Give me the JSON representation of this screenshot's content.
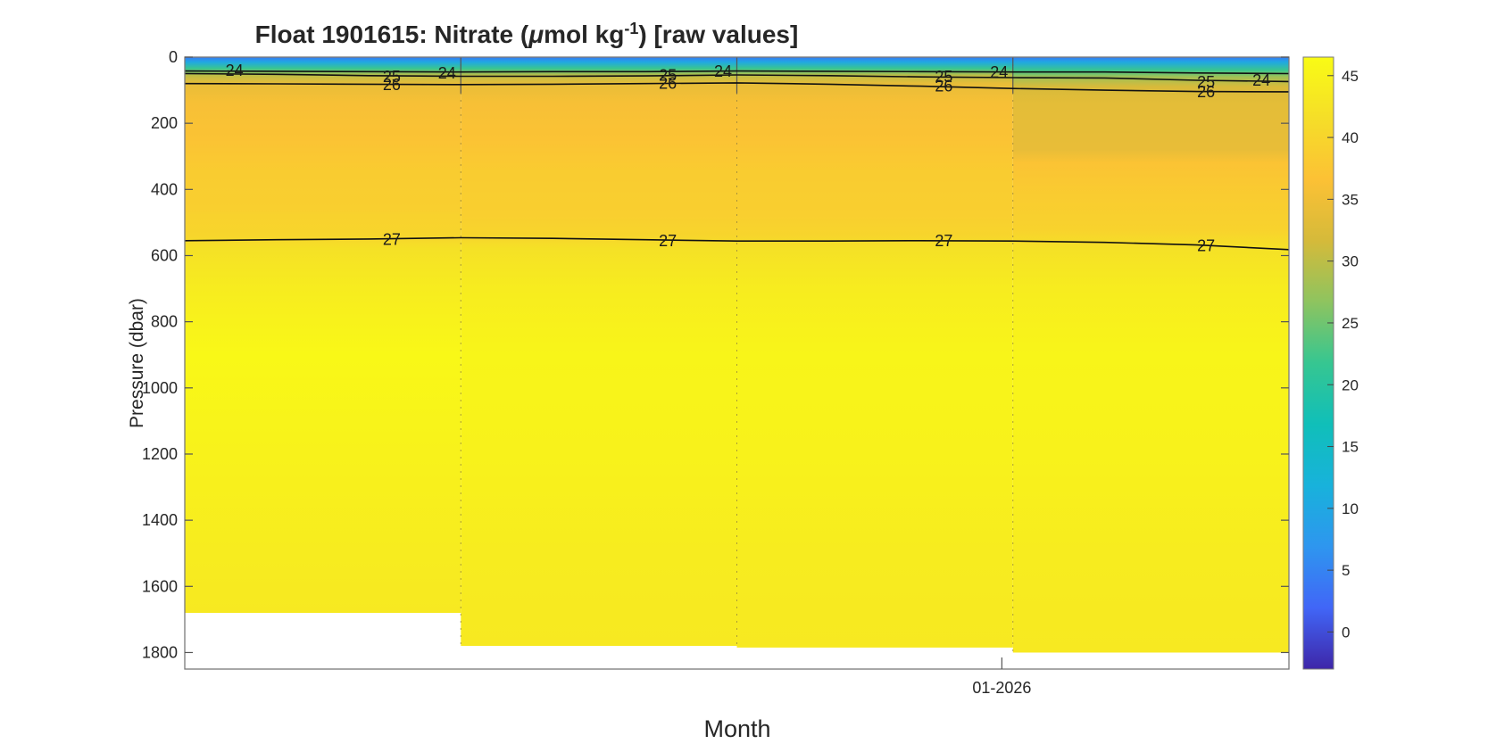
{
  "chart_data": {
    "type": "heatmap",
    "title_parts": {
      "prefix": "Float  1901615:  Nitrate   (",
      "mu": "μ",
      "unit": "mol  kg",
      "sup": "-1",
      "suffix": ")  [raw  values]"
    },
    "xlabel": "Month",
    "ylabel": "Pressure (dbar)",
    "ylim": [
      0,
      1850
    ],
    "y_ticks": [
      0,
      200,
      400,
      600,
      800,
      1000,
      1200,
      1400,
      1600,
      1800
    ],
    "x_tick_labels": [
      "01-2026"
    ],
    "colorbar": {
      "range": [
        -3,
        46.5
      ],
      "ticks": [
        0,
        5,
        10,
        15,
        20,
        25,
        30,
        35,
        40,
        45
      ],
      "colors": [
        "#3e26a8",
        "#4166f7",
        "#2e96ef",
        "#18b2db",
        "#10bfb9",
        "#36c691",
        "#8ec45f",
        "#d5ba3a",
        "#fcc135",
        "#f5de28",
        "#f9fb15"
      ]
    },
    "profiles": [
      {
        "max_pressure": 1680,
        "nitrate": [
          [
            0,
            4
          ],
          [
            15,
            10
          ],
          [
            35,
            22
          ],
          [
            55,
            30
          ],
          [
            80,
            34
          ],
          [
            140,
            36
          ],
          [
            250,
            37
          ],
          [
            350,
            38.5
          ],
          [
            460,
            39
          ],
          [
            480,
            39.5
          ],
          [
            540,
            40
          ],
          [
            580,
            42
          ],
          [
            700,
            44
          ],
          [
            900,
            46
          ],
          [
            1200,
            45
          ],
          [
            1500,
            44
          ],
          [
            1680,
            43.5
          ]
        ]
      },
      {
        "max_pressure": 1780,
        "nitrate": [
          [
            0,
            4
          ],
          [
            15,
            10
          ],
          [
            35,
            22
          ],
          [
            55,
            30
          ],
          [
            80,
            34
          ],
          [
            140,
            36
          ],
          [
            250,
            37
          ],
          [
            350,
            38.5
          ],
          [
            480,
            39
          ],
          [
            540,
            40
          ],
          [
            580,
            42
          ],
          [
            700,
            44
          ],
          [
            900,
            45.5
          ],
          [
            1200,
            45
          ],
          [
            1500,
            44
          ],
          [
            1780,
            43.5
          ]
        ]
      },
      {
        "max_pressure": 1785,
        "nitrate": [
          [
            0,
            4
          ],
          [
            15,
            10
          ],
          [
            35,
            22
          ],
          [
            55,
            30
          ],
          [
            80,
            34
          ],
          [
            140,
            36
          ],
          [
            250,
            37
          ],
          [
            350,
            38.5
          ],
          [
            480,
            39
          ],
          [
            540,
            40
          ],
          [
            580,
            42
          ],
          [
            700,
            44
          ],
          [
            900,
            45.5
          ],
          [
            1200,
            45
          ],
          [
            1500,
            44
          ],
          [
            1785,
            43.5
          ]
        ]
      },
      {
        "max_pressure": 1800,
        "nitrate": [
          [
            0,
            4
          ],
          [
            15,
            10
          ],
          [
            40,
            22
          ],
          [
            60,
            28
          ],
          [
            90,
            32
          ],
          [
            140,
            33.5
          ],
          [
            280,
            34
          ],
          [
            320,
            37
          ],
          [
            420,
            38.5
          ],
          [
            520,
            39.5
          ],
          [
            580,
            42
          ],
          [
            700,
            44
          ],
          [
            900,
            45.5
          ],
          [
            1200,
            45
          ],
          [
            1500,
            44
          ],
          [
            1800,
            43.5
          ]
        ]
      }
    ],
    "contours": [
      {
        "level": "24",
        "pressures": [
          42,
          43,
          44,
          45,
          44,
          44,
          42,
          43,
          44,
          45,
          45,
          48,
          50
        ]
      },
      {
        "level": "25",
        "pressures": [
          50,
          52,
          56,
          58,
          58,
          57,
          54,
          56,
          60,
          62,
          63,
          70,
          74
        ]
      },
      {
        "level": "26",
        "pressures": [
          80,
          81,
          82,
          83,
          82,
          80,
          78,
          82,
          88,
          95,
          100,
          104,
          105
        ]
      },
      {
        "level": "27",
        "pressures": [
          555,
          552,
          550,
          546,
          548,
          552,
          556,
          556,
          555,
          556,
          560,
          568,
          582
        ]
      }
    ],
    "contour_labels": [
      {
        "text": "24",
        "profile": 0.18,
        "pressure": 40
      },
      {
        "text": "24",
        "profile": 0.95,
        "pressure": 48
      },
      {
        "text": "24",
        "profile": 1.95,
        "pressure": 43
      },
      {
        "text": "24",
        "profile": 2.95,
        "pressure": 46
      },
      {
        "text": "24",
        "profile": 3.9,
        "pressure": 70
      },
      {
        "text": "25",
        "profile": 0.75,
        "pressure": 60
      },
      {
        "text": "25",
        "profile": 1.75,
        "pressure": 55
      },
      {
        "text": "25",
        "profile": 2.75,
        "pressure": 60
      },
      {
        "text": "25",
        "profile": 3.7,
        "pressure": 75
      },
      {
        "text": "26",
        "profile": 0.75,
        "pressure": 83
      },
      {
        "text": "26",
        "profile": 1.75,
        "pressure": 80
      },
      {
        "text": "26",
        "profile": 2.75,
        "pressure": 88
      },
      {
        "text": "26",
        "profile": 3.7,
        "pressure": 105
      },
      {
        "text": "27",
        "profile": 0.75,
        "pressure": 551
      },
      {
        "text": "27",
        "profile": 1.75,
        "pressure": 556
      },
      {
        "text": "27",
        "profile": 2.75,
        "pressure": 556
      },
      {
        "text": "27",
        "profile": 3.7,
        "pressure": 570
      }
    ]
  }
}
